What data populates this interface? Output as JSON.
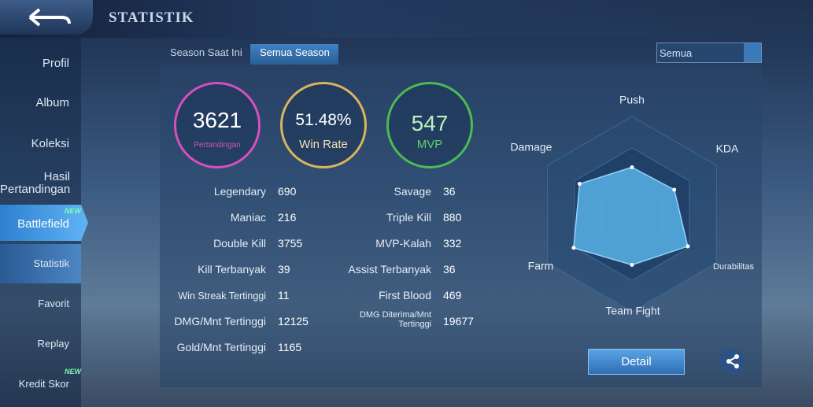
{
  "header": {
    "title": "STATISTIK"
  },
  "sidebar": {
    "items": [
      {
        "label": "Profil"
      },
      {
        "label": "Album"
      },
      {
        "label": "Koleksi"
      },
      {
        "label": "Hasil Pertandingan"
      },
      {
        "label": "Battlefield",
        "badge": "NEW"
      },
      {
        "label": "Statistik"
      },
      {
        "label": "Favorit"
      },
      {
        "label": "Replay"
      },
      {
        "label": "Kredit Skor",
        "badge": "NEW"
      }
    ]
  },
  "tabs": [
    "Season Saat Ini",
    "Semua Season"
  ],
  "dropdown": "Semua",
  "summary": [
    {
      "value": "3621",
      "label": "Pertandingan"
    },
    {
      "value": "51.48%",
      "label": "Win Rate"
    },
    {
      "value": "547",
      "label": "MVP"
    }
  ],
  "stats": {
    "left": [
      [
        "Legendary",
        "690"
      ],
      [
        "Maniac",
        "216"
      ],
      [
        "Double Kill",
        "3755"
      ],
      [
        "Kill Terbanyak",
        "39"
      ],
      [
        "Win Streak Tertinggi",
        "11"
      ],
      [
        "DMG/Mnt Tertinggi",
        "12125"
      ],
      [
        "Gold/Mnt Tertinggi",
        "1165"
      ]
    ],
    "right": [
      [
        "Savage",
        "36"
      ],
      [
        "Triple Kill",
        "880"
      ],
      [
        "MVP-Kalah",
        "332"
      ],
      [
        "Assist Terbanyak",
        "36"
      ],
      [
        "First Blood",
        "469"
      ],
      [
        "DMG Diterima/Mnt Tertinggi",
        "19677"
      ]
    ]
  },
  "radar": {
    "rlim": [
      0,
      100
    ],
    "axes": [
      {
        "label": "Push",
        "value": 48
      },
      {
        "label": "KDA",
        "value": 50
      },
      {
        "label": "Durabilitas",
        "value": 66
      },
      {
        "label": "Team Fight",
        "value": 52
      },
      {
        "label": "Farm",
        "value": 69
      },
      {
        "label": "Damage",
        "value": 62
      }
    ]
  },
  "detail_button": "Detail"
}
